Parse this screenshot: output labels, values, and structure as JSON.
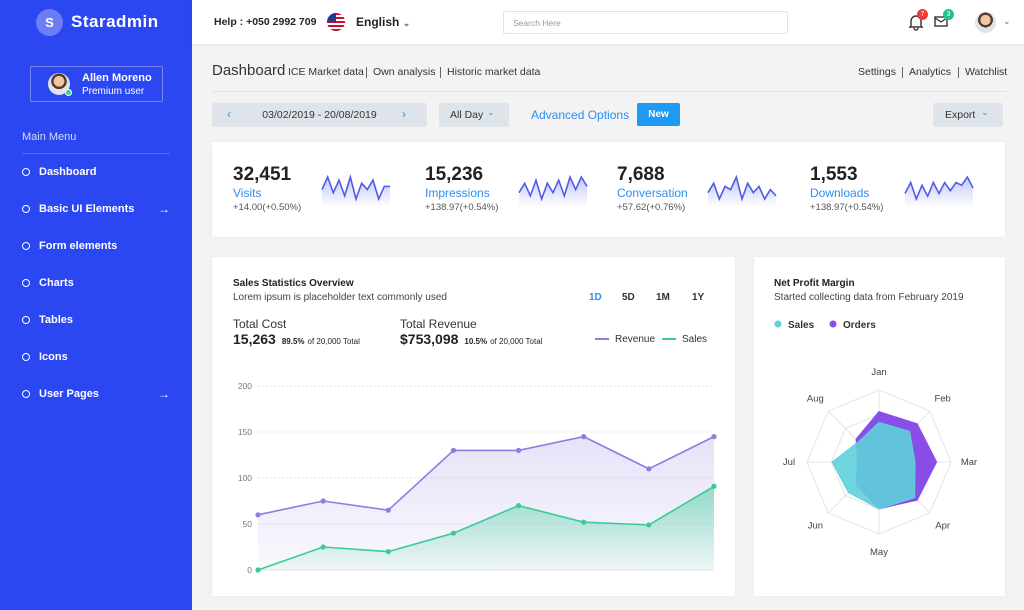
{
  "sidebar": {
    "brand_initial": "S",
    "brand": "Staradmin",
    "user_name": "Allen Moreno",
    "user_role": "Premium user",
    "menu_title": "Main Menu",
    "menu": [
      "Dashboard",
      "Basic UI Elements",
      "Form elements",
      "Charts",
      "Tables",
      "Icons",
      "User Pages"
    ]
  },
  "topbar": {
    "help": "Help : +050 2992 709",
    "language": "English",
    "search_placeholder": "Search Here",
    "notifications": 7,
    "messages": 3
  },
  "header": {
    "title": "Dashboard",
    "links": [
      "ICE Market data",
      "Own analysis",
      "Historic market data"
    ],
    "right_links": [
      "Settings",
      "Analytics",
      "Watchlist"
    ]
  },
  "toolbar": {
    "date_range": "03/02/2019 - 20/08/2019",
    "period": "All Day",
    "advanced": "Advanced Options",
    "new": "New",
    "export": "Export"
  },
  "stats": [
    {
      "value": "32,451",
      "label": "Visits",
      "change": "+14.00(+0.50%)",
      "trend": [
        5,
        9,
        4,
        8,
        3,
        9,
        2,
        7,
        5,
        8,
        2,
        6,
        6
      ]
    },
    {
      "value": "15,236",
      "label": "Impressions",
      "change": "+138.97(+0.54%)",
      "trend": [
        4,
        7,
        3,
        8,
        2,
        7,
        4,
        8,
        3,
        9,
        5,
        9,
        6
      ]
    },
    {
      "value": "7,688",
      "label": "Conversation",
      "change": "+57.62(+0.76%)",
      "trend": [
        5,
        8,
        3,
        7,
        6,
        10,
        3,
        8,
        5,
        7,
        3,
        6,
        4
      ]
    },
    {
      "value": "1,553",
      "label": "Downloads",
      "change": "+138.97(+0.54%)",
      "trend": [
        4,
        8,
        2,
        7,
        3,
        8,
        4,
        8,
        5,
        8,
        7,
        10,
        6
      ]
    }
  ],
  "sales": {
    "type": "line",
    "title": "Sales Statistics Overview",
    "subtitle": "Lorem ipsum is placeholder text commonly used",
    "ranges": [
      "1D",
      "5D",
      "1M",
      "1Y"
    ],
    "totals": [
      {
        "label": "Total Cost",
        "value": "15,263",
        "share": "89.5%",
        "of": "of 20,000 Total"
      },
      {
        "label": "Total Revenue",
        "value": "$753,098",
        "share": "10.5%",
        "of": "of 20,000 Total"
      }
    ],
    "categories": [
      null,
      null,
      null,
      null,
      null,
      null,
      null,
      null
    ],
    "series": [
      {
        "name": "Revenue",
        "color": "#8c7ee0",
        "values": [
          60,
          75,
          65,
          130,
          130,
          145,
          110,
          145
        ]
      },
      {
        "name": "Sales",
        "color": "#3ccb98",
        "values": [
          0,
          25,
          20,
          40,
          70,
          52,
          49,
          91
        ]
      }
    ],
    "ylim": [
      0,
      200
    ],
    "yticks": [
      0,
      50,
      100,
      150,
      200
    ],
    "grid": true
  },
  "profit": {
    "type": "radar",
    "title": "Net Profit Margin",
    "subtitle": "Started collecting data from February 2019",
    "categories": [
      "Jan",
      "Feb",
      "Mar",
      "Apr",
      "May",
      "Jun",
      "Jul",
      "Aug"
    ],
    "series": [
      {
        "name": "Sales",
        "color": "#5fd0da",
        "values": [
          55,
          60,
          50,
          70,
          65,
          60,
          65,
          40
        ]
      },
      {
        "name": "Orders",
        "color": "#8a4ee8",
        "values": [
          70,
          75,
          80,
          75,
          65,
          45,
          30,
          45
        ]
      }
    ],
    "rlim": [
      0,
      100
    ]
  }
}
